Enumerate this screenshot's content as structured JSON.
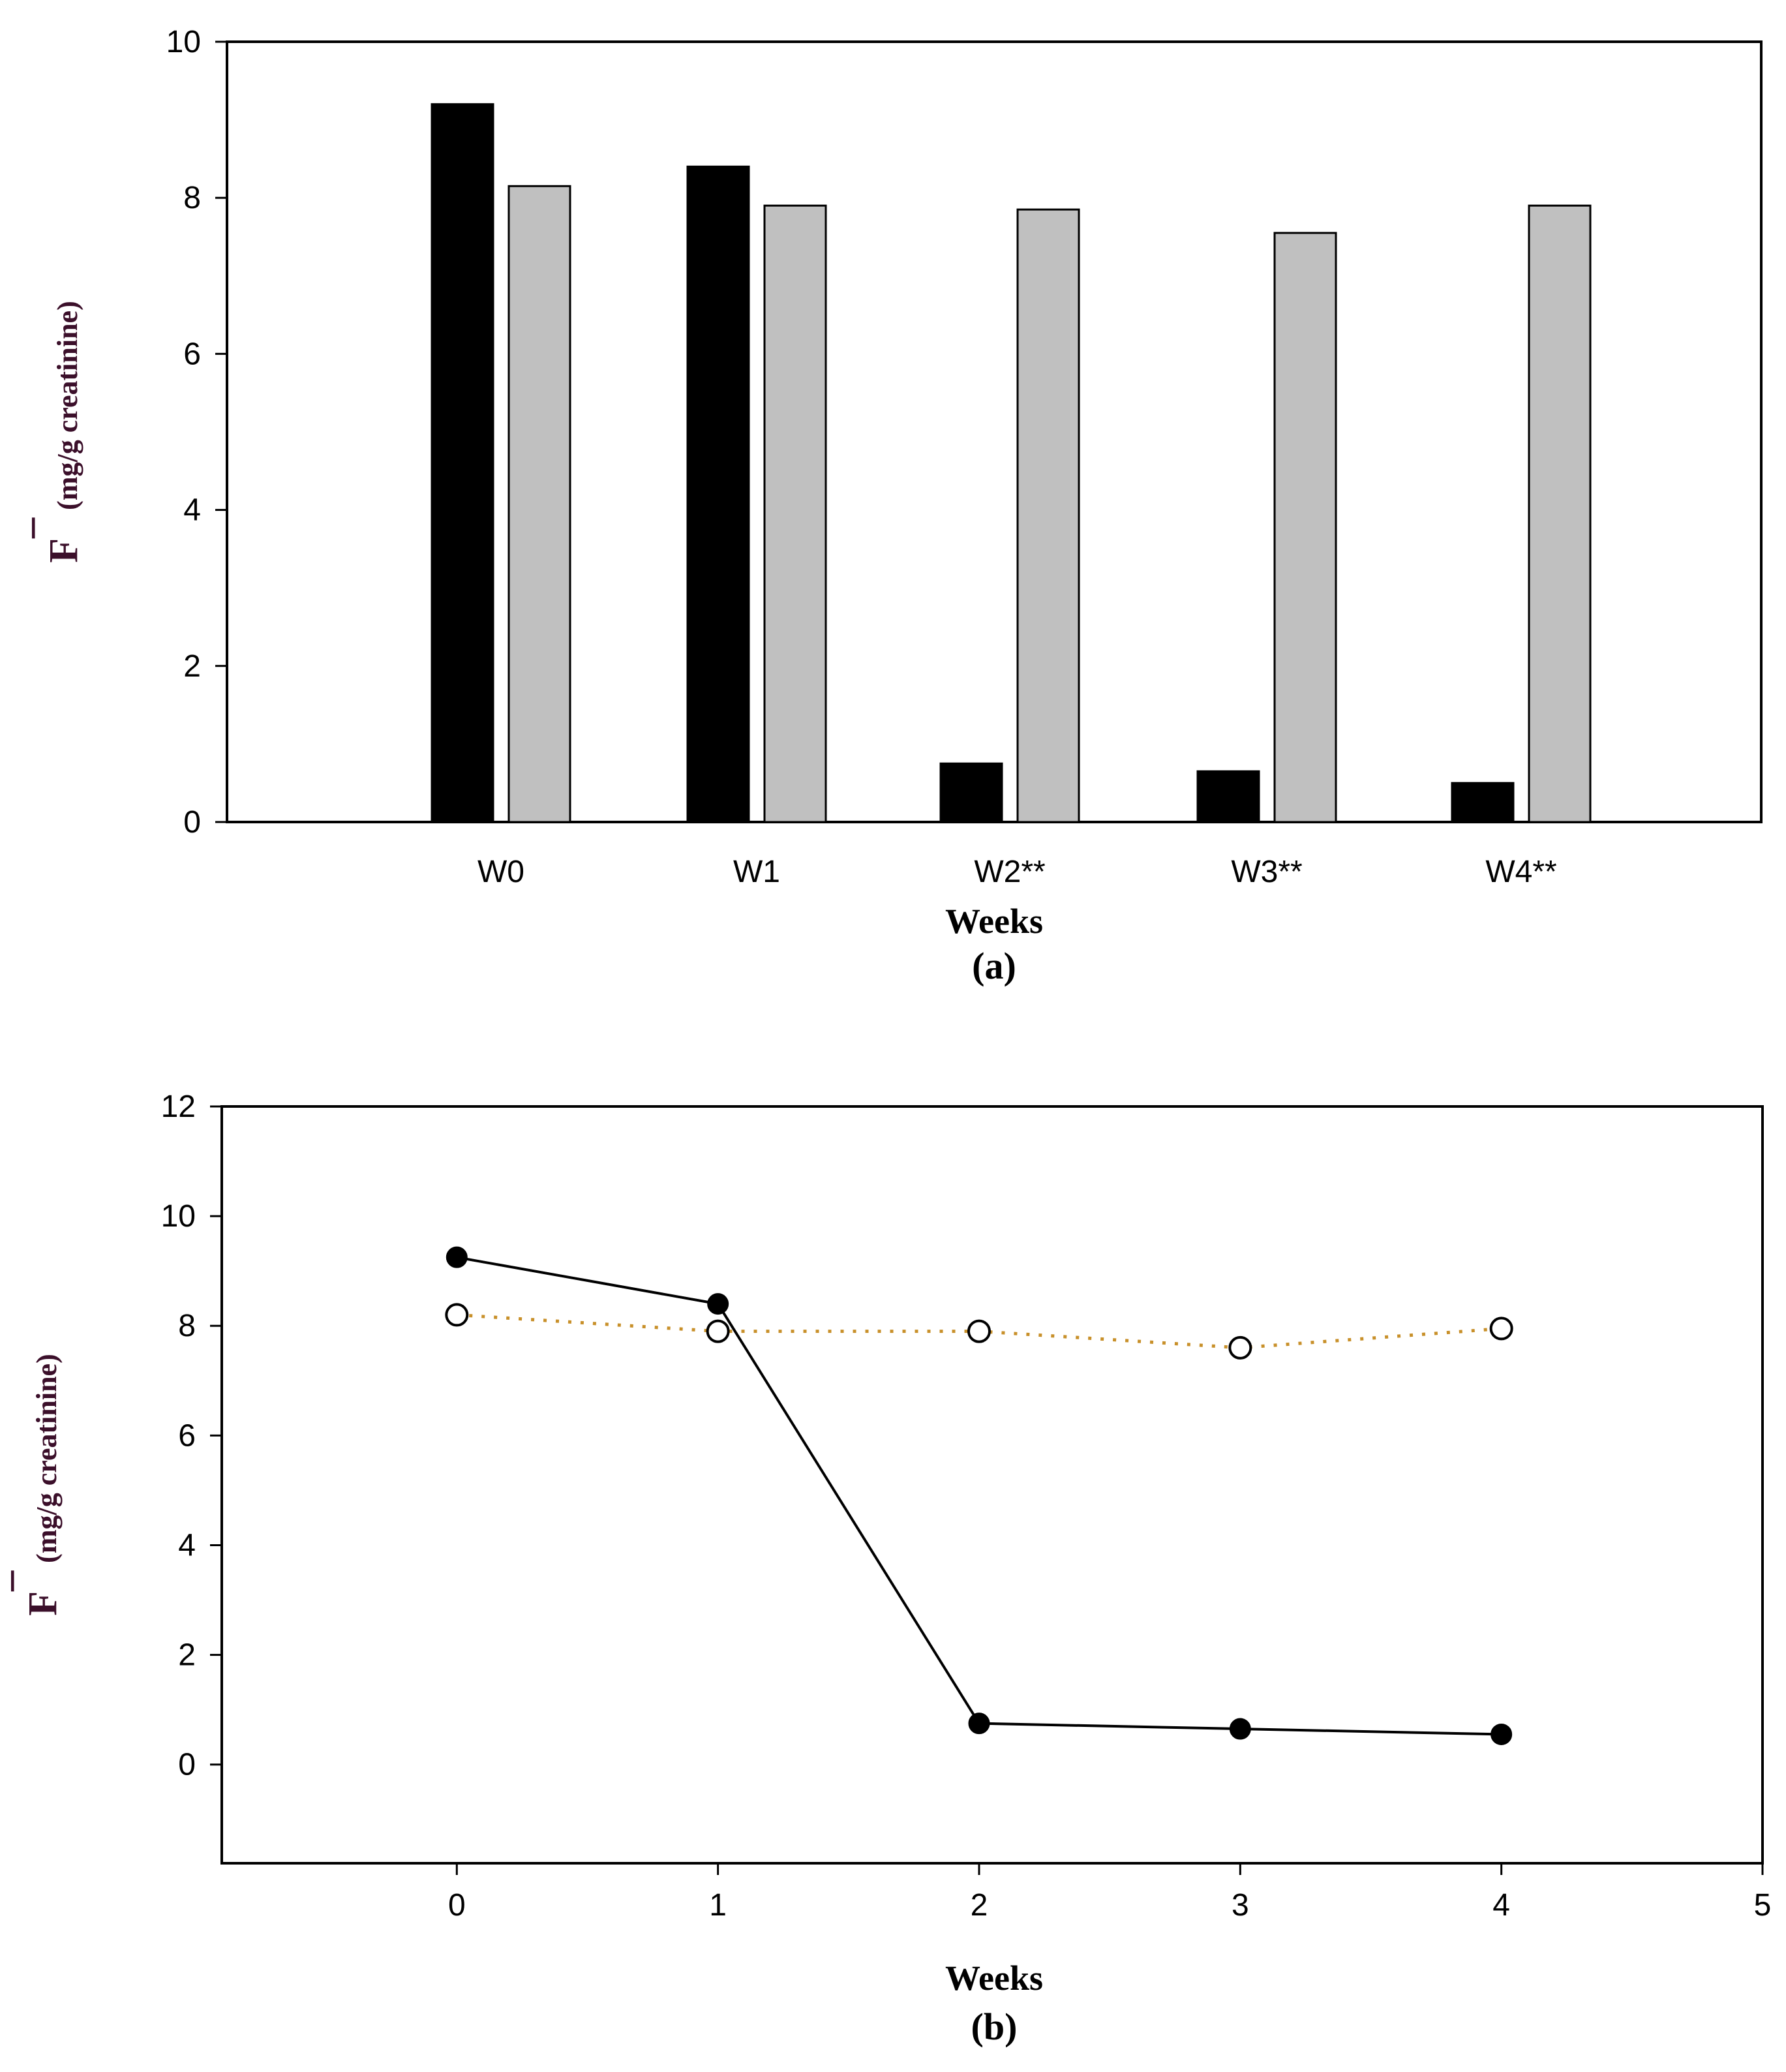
{
  "chart_data": [
    {
      "type": "bar",
      "panel_label": "(a)",
      "xlabel": "Weeks",
      "ylabel_symbol": "F",
      "ylabel_superscript": "¯",
      "ylabel_unit": "(mg/g creatinine)",
      "categories": [
        "W0",
        "W1",
        "W2**",
        "W3**",
        "W4**"
      ],
      "series": [
        {
          "name": "series-1",
          "color": "#000000",
          "values": [
            9.2,
            8.4,
            0.75,
            0.65,
            0.5
          ]
        },
        {
          "name": "series-2",
          "color": "#c0c0c0",
          "values": [
            8.15,
            7.9,
            7.85,
            7.55,
            7.9
          ]
        }
      ],
      "ylim": [
        0,
        10
      ],
      "yticks": [
        "0",
        "2",
        "4",
        "6",
        "8",
        "10"
      ]
    },
    {
      "type": "line",
      "panel_label": "(b)",
      "xlabel": "Weeks",
      "ylabel_symbol": "F",
      "ylabel_superscript": "¯",
      "ylabel_unit": "(mg/g creatinine)",
      "x": [
        0,
        1,
        2,
        3,
        4
      ],
      "series": [
        {
          "name": "filled-circles",
          "color": "#000000",
          "marker": "filled-circle",
          "line": "solid",
          "values": [
            9.25,
            8.4,
            0.75,
            0.65,
            0.55
          ]
        },
        {
          "name": "open-circles",
          "color": "#c8902a",
          "marker": "open-circle",
          "line": "dotted",
          "values": [
            8.2,
            7.9,
            7.9,
            7.6,
            7.95
          ]
        }
      ],
      "xlim": [
        -0.9,
        5
      ],
      "ylim": [
        -1.8,
        12
      ],
      "xticks": [
        "0",
        "1",
        "2",
        "3",
        "4",
        "5"
      ],
      "yticks": [
        "0",
        "2",
        "4",
        "6",
        "8",
        "10",
        "12"
      ]
    }
  ]
}
